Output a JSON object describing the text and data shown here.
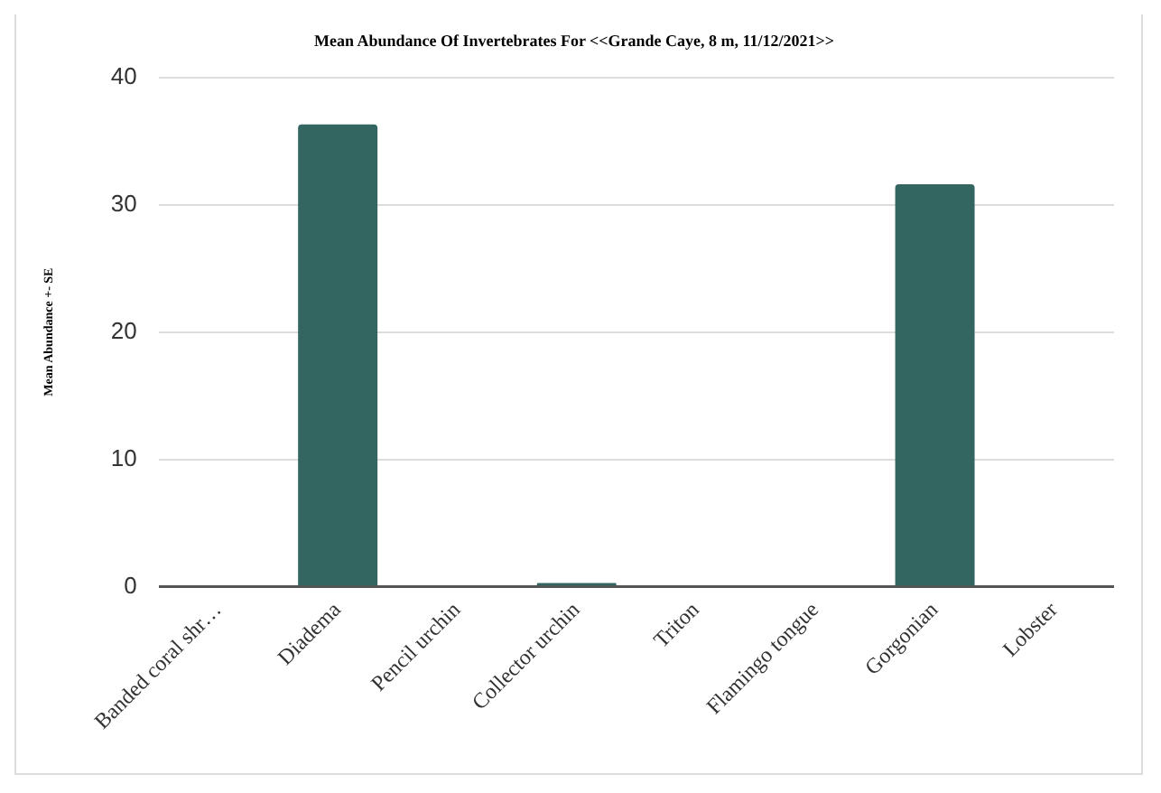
{
  "chart_data": {
    "type": "bar",
    "title": "Mean Abundance Of Invertebrates For <<Grande Caye, 8 m, 11/12/2021>>",
    "ylabel": "Mean Abundance +- SE",
    "categories": [
      "Banded coral shr…",
      "Diadema",
      "Pencil urchin",
      "Collector urchin",
      "Triton",
      "Flamingo tongue",
      "Gorgonian",
      "Lobster"
    ],
    "values": [
      0,
      36.3,
      0,
      0.3,
      0,
      0,
      31.6,
      0
    ],
    "color": "#336660",
    "ylim": [
      0,
      40
    ],
    "yticks": [
      0,
      10,
      20,
      30,
      40
    ],
    "grid": "y",
    "legend": false
  }
}
